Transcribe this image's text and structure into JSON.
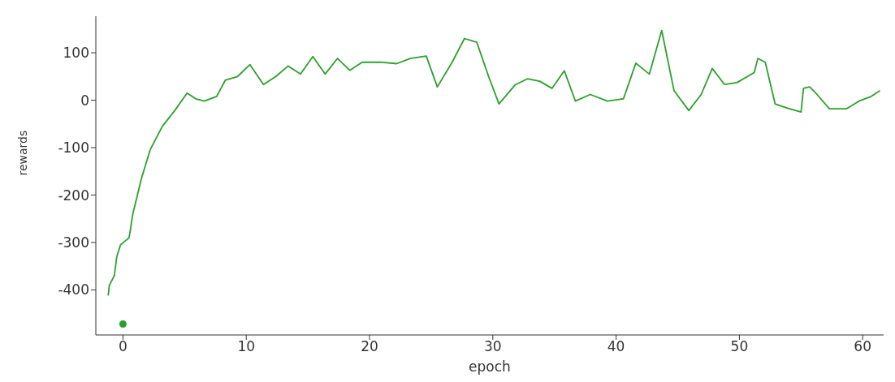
{
  "chart_data": {
    "type": "line",
    "xlabel": "epoch",
    "ylabel": "rewards",
    "xlim": [
      -2.2,
      61.7
    ],
    "ylim": [
      -495,
      177
    ],
    "xticks": [
      0,
      10,
      20,
      30,
      40,
      50,
      60
    ],
    "yticks": [
      -400,
      -300,
      -200,
      -100,
      0,
      100
    ],
    "line_style": "solid",
    "series": [
      {
        "color": "#2ca02c",
        "x": [
          -1.2,
          -1.1,
          -0.7,
          -0.5,
          -0.2,
          0.5,
          0.8,
          1.5,
          2.2,
          3.2,
          4.2,
          5.2,
          5.9,
          6.6,
          7.6,
          8.3,
          9.3,
          10.3,
          11.4,
          12.4,
          13.4,
          14.4,
          15.4,
          16.4,
          17.4,
          18.4,
          19.4,
          20.9,
          22.2,
          23.3,
          24.6,
          25.5,
          26.7,
          27.7,
          28.7,
          29.7,
          30.5,
          31.8,
          32.8,
          33.8,
          34.8,
          35.8,
          36.7,
          37.9,
          39.3,
          40.6,
          41.6,
          42.7,
          43.7,
          44.7,
          45.9,
          46.9,
          47.8,
          48.8,
          49.8,
          51.2,
          51.5,
          52.1,
          52.9,
          53.9,
          55.0,
          55.2,
          55.7,
          56.3,
          57.3,
          58.7,
          59.7,
          60.7,
          61.4
        ],
        "values": [
          -412,
          -390,
          -370,
          -330,
          -305,
          -290,
          -240,
          -165,
          -105,
          -55,
          -22,
          15,
          3,
          -2,
          8,
          42,
          50,
          75,
          33,
          50,
          72,
          55,
          92,
          55,
          88,
          63,
          80,
          80,
          77,
          88,
          93,
          28,
          80,
          130,
          122,
          47,
          -8,
          32,
          45,
          40,
          25,
          62,
          -2,
          12,
          -2,
          3,
          78,
          55,
          147,
          20,
          -22,
          12,
          67,
          33,
          37,
          58,
          88,
          80,
          -8,
          -17,
          -25,
          25,
          28,
          12,
          -18,
          -18,
          -2,
          8,
          20
        ]
      },
      {
        "type": "scatter",
        "marker": "circle",
        "color": "#2ca02c",
        "x": [
          0
        ],
        "values": [
          -472
        ]
      }
    ]
  }
}
